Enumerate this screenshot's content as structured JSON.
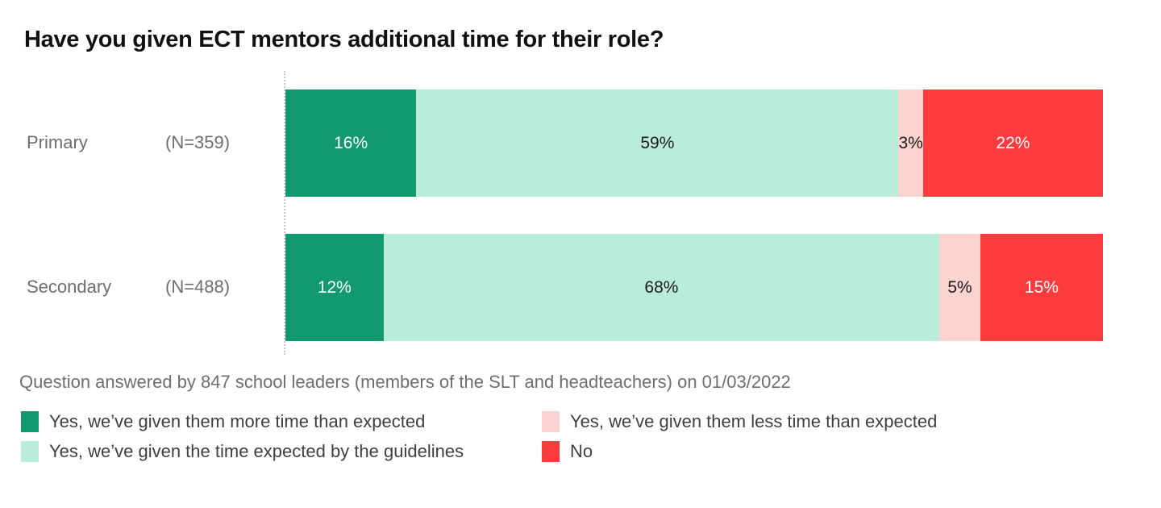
{
  "chart_data": {
    "type": "bar",
    "orientation": "horizontal",
    "stacked": true,
    "title": "Have you given ECT mentors additional time for their role?",
    "categories": [
      "Primary",
      "Secondary"
    ],
    "sample_sizes": [
      "(N=359)",
      "(N=488)"
    ],
    "xlim": [
      0,
      100
    ],
    "value_suffix": "%",
    "grid": false,
    "legend_position": "bottom",
    "series": [
      {
        "name": "Yes, we’ve given them more time than expected",
        "color": "#12996f",
        "label_color": "#ffffff",
        "values": [
          16,
          12
        ]
      },
      {
        "name": "Yes, we’ve given the time expected by the guidelines",
        "color": "#b9ecd9",
        "label_color": "#1d1d1b",
        "values": [
          59,
          68
        ]
      },
      {
        "name": "Yes, we’ve given them less time than expected",
        "color": "#fbd3d1",
        "label_color": "#1d1d1b",
        "values": [
          3,
          5
        ]
      },
      {
        "name": "No",
        "color": "#fc3b3c",
        "label_color": "#ffffff",
        "values": [
          22,
          15
        ]
      }
    ]
  },
  "footnote": "Question answered by 847 school leaders (members of the SLT and headteachers) on 01/03/2022",
  "colors": {
    "background": "#ffffff",
    "title_text": "#111111",
    "axis_label_text": "#6e6e6e",
    "footnote_text": "#6e6e6e",
    "legend_text": "#3f3f3f",
    "axis_line": "#c9c9c9"
  }
}
